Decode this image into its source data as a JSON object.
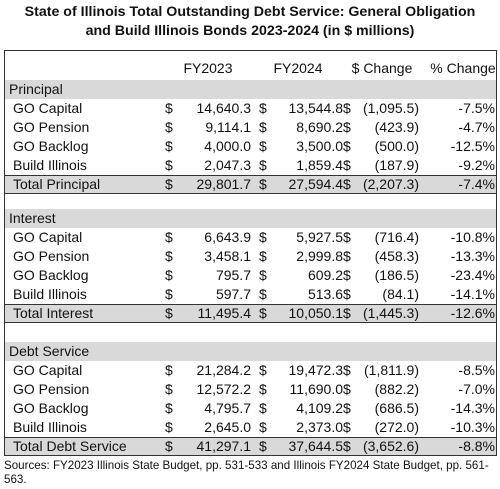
{
  "title_line1": "State of Illinois Total Outstanding Debt Service: General Obligation",
  "title_line2": "and Build Illinois Bonds  2023-2024 (in $ millions)",
  "headers": [
    "FY2023",
    "FY2024",
    "$ Change",
    "% Change"
  ],
  "currency_symbol": "$",
  "sections": [
    {
      "name": "Principal",
      "rows": [
        {
          "label": "GO Capital",
          "fy2023": "14,640.3",
          "fy2024": "13,544.8",
          "change": "(1,095.5)",
          "pct": "-7.5%"
        },
        {
          "label": "GO Pension",
          "fy2023": "9,114.1",
          "fy2024": "8,690.2",
          "change": "(423.9)",
          "pct": "-4.7%"
        },
        {
          "label": "GO Backlog",
          "fy2023": "4,000.0",
          "fy2024": "3,500.0",
          "change": "(500.0)",
          "pct": "-12.5%"
        },
        {
          "label": "Build Illinois",
          "fy2023": "2,047.3",
          "fy2024": "1,859.4",
          "change": "(187.9)",
          "pct": "-9.2%"
        }
      ],
      "total": {
        "label": "Total Principal",
        "fy2023": "29,801.7",
        "fy2024": "27,594.4",
        "change": "(2,207.3)",
        "pct": "-7.4%"
      }
    },
    {
      "name": "Interest",
      "rows": [
        {
          "label": "GO Capital",
          "fy2023": "6,643.9",
          "fy2024": "5,927.5",
          "change": "(716.4)",
          "pct": "-10.8%"
        },
        {
          "label": "GO Pension",
          "fy2023": "3,458.1",
          "fy2024": "2,999.8",
          "change": "(458.3)",
          "pct": "-13.3%"
        },
        {
          "label": "GO Backlog",
          "fy2023": "795.7",
          "fy2024": "609.2",
          "change": "(186.5)",
          "pct": "-23.4%"
        },
        {
          "label": "Build Illinois",
          "fy2023": "597.7",
          "fy2024": "513.6",
          "change": "(84.1)",
          "pct": "-14.1%"
        }
      ],
      "total": {
        "label": "Total Interest",
        "fy2023": "11,495.4",
        "fy2024": "10,050.1",
        "change": "(1,445.3)",
        "pct": "-12.6%"
      }
    },
    {
      "name": "Debt Service",
      "rows": [
        {
          "label": "GO Capital",
          "fy2023": "21,284.2",
          "fy2024": "19,472.3",
          "change": "(1,811.9)",
          "pct": "-8.5%"
        },
        {
          "label": "GO Pension",
          "fy2023": "12,572.2",
          "fy2024": "11,690.0",
          "change": "(882.2)",
          "pct": "-7.0%"
        },
        {
          "label": "GO Backlog",
          "fy2023": "4,795.7",
          "fy2024": "4,109.2",
          "change": "(686.5)",
          "pct": "-14.3%"
        },
        {
          "label": "Build Illinois",
          "fy2023": "2,645.0",
          "fy2024": "2,373.0",
          "change": "(272.0)",
          "pct": "-10.3%"
        }
      ],
      "total": {
        "label": "Total Debt Service",
        "fy2023": "41,297.1",
        "fy2024": "37,644.5",
        "change": "(3,652.6)",
        "pct": "-8.8%"
      }
    }
  ],
  "source": "Sources:  FY2023 Illinois State Budget, pp. 531-533 and Illinois FY2024 State Budget, pp. 561-563.",
  "colors": {
    "shade": "#d9d9d9",
    "border": "#333333"
  },
  "chart_data": {
    "type": "table",
    "title": "State of Illinois Total Outstanding Debt Service: General Obligation and Build Illinois Bonds  2023-2024 (in $ millions)",
    "columns": [
      "FY2023",
      "FY2024",
      "$ Change",
      "% Change"
    ],
    "rows": [
      {
        "section": "Principal",
        "label": "GO Capital",
        "values": [
          14640.3,
          13544.8,
          -1095.5,
          -7.5
        ]
      },
      {
        "section": "Principal",
        "label": "GO Pension",
        "values": [
          9114.1,
          8690.2,
          -423.9,
          -4.7
        ]
      },
      {
        "section": "Principal",
        "label": "GO Backlog",
        "values": [
          4000.0,
          3500.0,
          -500.0,
          -12.5
        ]
      },
      {
        "section": "Principal",
        "label": "Build Illinois",
        "values": [
          2047.3,
          1859.4,
          -187.9,
          -9.2
        ]
      },
      {
        "section": "Principal",
        "label": "Total Principal",
        "values": [
          29801.7,
          27594.4,
          -2207.3,
          -7.4
        ]
      },
      {
        "section": "Interest",
        "label": "GO Capital",
        "values": [
          6643.9,
          5927.5,
          -716.4,
          -10.8
        ]
      },
      {
        "section": "Interest",
        "label": "GO Pension",
        "values": [
          3458.1,
          2999.8,
          -458.3,
          -13.3
        ]
      },
      {
        "section": "Interest",
        "label": "GO Backlog",
        "values": [
          795.7,
          609.2,
          -186.5,
          -23.4
        ]
      },
      {
        "section": "Interest",
        "label": "Build Illinois",
        "values": [
          597.7,
          513.6,
          -84.1,
          -14.1
        ]
      },
      {
        "section": "Interest",
        "label": "Total Interest",
        "values": [
          11495.4,
          10050.1,
          -1445.3,
          -12.6
        ]
      },
      {
        "section": "Debt Service",
        "label": "GO Capital",
        "values": [
          21284.2,
          19472.3,
          -1811.9,
          -8.5
        ]
      },
      {
        "section": "Debt Service",
        "label": "GO Pension",
        "values": [
          12572.2,
          11690.0,
          -882.2,
          -7.0
        ]
      },
      {
        "section": "Debt Service",
        "label": "GO Backlog",
        "values": [
          4795.7,
          4109.2,
          -686.5,
          -14.3
        ]
      },
      {
        "section": "Debt Service",
        "label": "Build Illinois",
        "values": [
          2645.0,
          2373.0,
          -272.0,
          -10.3
        ]
      },
      {
        "section": "Debt Service",
        "label": "Total Debt Service",
        "values": [
          41297.1,
          37644.5,
          -3652.6,
          -8.8
        ]
      }
    ]
  }
}
